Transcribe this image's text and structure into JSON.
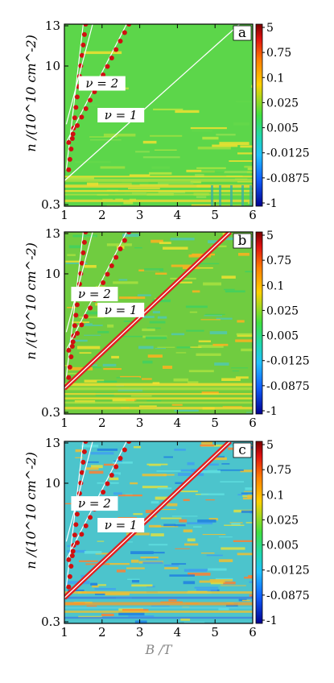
{
  "chart_data": [
    {
      "type": "heatmap",
      "panel": "a",
      "background": "#5cd64a",
      "xlabel": "",
      "ylabel": "n /(10^10 cm^-2)",
      "xticks": [
        "1",
        "2",
        "3",
        "4",
        "5",
        "6"
      ],
      "yticks": [
        "13",
        "10",
        "0.3"
      ],
      "xlim": [
        1,
        6
      ],
      "ylim": [
        0.3,
        13
      ],
      "colorbar_ticks": [
        "5",
        "0.75",
        "0.1",
        "0.025",
        "0.005",
        "-0.0125",
        "-0.0875",
        "-1"
      ],
      "annotations": [
        {
          "text": "ν = 2",
          "x": 2.0,
          "y": 8.8
        },
        {
          "text": "ν = 1",
          "x": 2.5,
          "y": 6.6
        }
      ]
    },
    {
      "type": "heatmap",
      "panel": "b",
      "background": "#70cc40",
      "xlabel": "",
      "ylabel": "n /(10^10 cm^-2)",
      "xticks": [
        "1",
        "2",
        "3",
        "4",
        "5",
        "6"
      ],
      "yticks": [
        "13",
        "10",
        "0.3"
      ],
      "xlim": [
        1,
        6
      ],
      "ylim": [
        0.3,
        13
      ],
      "colorbar_ticks": [
        "5",
        "0.75",
        "0.1",
        "0.025",
        "0.005",
        "-0.0125",
        "-0.0875",
        "-1"
      ],
      "annotations": [
        {
          "text": "ν = 2",
          "x": 1.8,
          "y": 8.6
        },
        {
          "text": "ν = 1",
          "x": 2.5,
          "y": 7.5
        }
      ]
    },
    {
      "type": "heatmap",
      "panel": "c",
      "background": "#4cc4cc",
      "xlabel": "B /T",
      "ylabel": "n /(10^10 cm^-2)",
      "xticks": [
        "1",
        "2",
        "3",
        "4",
        "5",
        "6"
      ],
      "yticks": [
        "13",
        "10",
        "0.3"
      ],
      "xlim": [
        1,
        6
      ],
      "ylim": [
        0.3,
        13
      ],
      "colorbar_ticks": [
        "5",
        "0.75",
        "0.1",
        "0.025",
        "0.005",
        "-0.0125",
        "-0.0875",
        "-1"
      ],
      "annotations": [
        {
          "text": "ν = 2",
          "x": 1.8,
          "y": 8.6
        },
        {
          "text": "ν = 1",
          "x": 2.5,
          "y": 7.1
        }
      ]
    }
  ]
}
